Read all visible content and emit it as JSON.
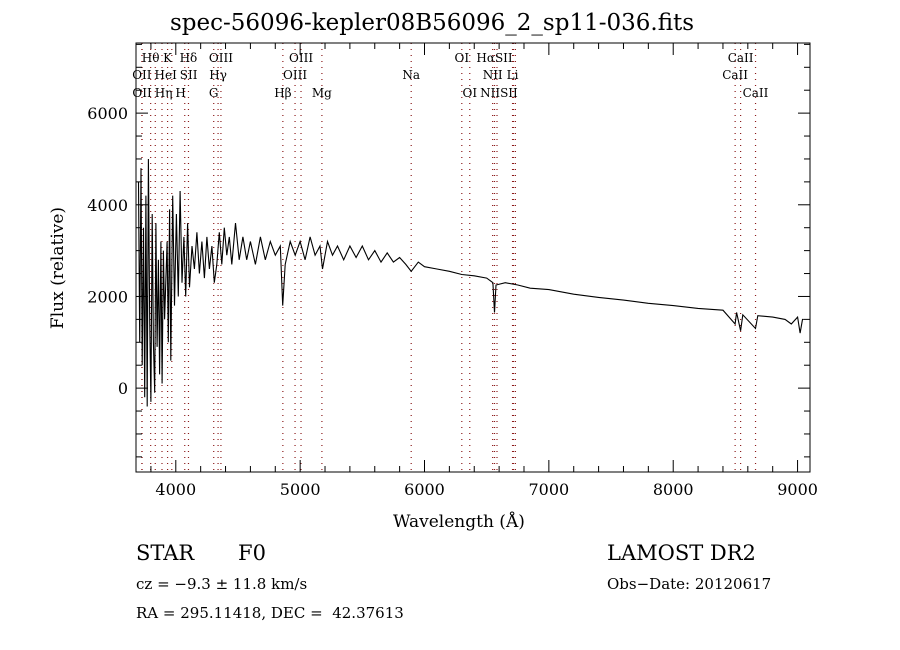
{
  "chart_data": {
    "type": "line",
    "title": "spec-56096-kepler08B56096_2_sp11-036.fits",
    "xlabel": "Wavelength (Å)",
    "ylabel": "Flux (relative)",
    "xlim": [
      3680,
      9100
    ],
    "ylim": [
      -1830,
      7530
    ],
    "xticks": [
      4000,
      5000,
      6000,
      7000,
      8000,
      9000
    ],
    "yticks": [
      0,
      2000,
      4000,
      6000
    ],
    "grid": false,
    "series": [
      {
        "name": "spectrum",
        "x": [
          3700,
          3710,
          3720,
          3730,
          3740,
          3750,
          3760,
          3770,
          3780,
          3790,
          3800,
          3810,
          3820,
          3830,
          3840,
          3850,
          3860,
          3870,
          3880,
          3890,
          3900,
          3910,
          3930,
          3940,
          3950,
          3960,
          3975,
          3990,
          4005,
          4020,
          4035,
          4050,
          4065,
          4080,
          4095,
          4110,
          4130,
          4150,
          4170,
          4190,
          4210,
          4230,
          4250,
          4270,
          4290,
          4310,
          4330,
          4350,
          4370,
          4390,
          4410,
          4430,
          4450,
          4480,
          4510,
          4540,
          4570,
          4600,
          4640,
          4680,
          4720,
          4760,
          4800,
          4840,
          4860,
          4880,
          4920,
          4960,
          5000,
          5040,
          5080,
          5120,
          5160,
          5180,
          5220,
          5260,
          5300,
          5350,
          5400,
          5450,
          5500,
          5550,
          5600,
          5650,
          5700,
          5750,
          5800,
          5850,
          5893,
          5950,
          6000,
          6100,
          6200,
          6300,
          6400,
          6500,
          6550,
          6563,
          6575,
          6650,
          6750,
          6850,
          7000,
          7200,
          7400,
          7600,
          7800,
          8000,
          8200,
          8400,
          8498,
          8510,
          8542,
          8560,
          8662,
          8680,
          8800,
          8900,
          8950,
          9000,
          9020,
          9040,
          9050
        ],
        "y": [
          4500,
          1000,
          4800,
          500,
          3500,
          -200,
          4200,
          -400,
          5000,
          1500,
          -300,
          3800,
          1000,
          -100,
          3600,
          900,
          2800,
          300,
          3200,
          100,
          3000,
          1500,
          3200,
          1000,
          3900,
          600,
          4200,
          1800,
          3800,
          2000,
          4300,
          2300,
          3300,
          2000,
          3600,
          2200,
          3100,
          2600,
          3400,
          2500,
          3200,
          2400,
          3300,
          2600,
          3100,
          2300,
          2700,
          3400,
          2700,
          3500,
          2900,
          3300,
          2700,
          3600,
          2800,
          3300,
          2800,
          3200,
          2700,
          3300,
          2800,
          3200,
          2900,
          3100,
          1800,
          2700,
          3200,
          2900,
          3200,
          2800,
          3300,
          2900,
          3100,
          2600,
          3200,
          2900,
          3100,
          2800,
          3100,
          2850,
          3100,
          2800,
          3000,
          2750,
          2950,
          2750,
          2850,
          2700,
          2550,
          2750,
          2650,
          2600,
          2550,
          2480,
          2450,
          2400,
          2300,
          1650,
          2250,
          2300,
          2250,
          2180,
          2150,
          2050,
          1980,
          1920,
          1850,
          1800,
          1740,
          1700,
          1400,
          1650,
          1250,
          1600,
          1300,
          1580,
          1550,
          1500,
          1400,
          1550,
          1200,
          1500,
          1500
        ]
      }
    ],
    "lines": [
      {
        "label": "Hθ",
        "wave": 3798,
        "row": 0
      },
      {
        "label": "K",
        "wave": 3934,
        "row": 0
      },
      {
        "label": "Hδ",
        "wave": 4102,
        "row": 0
      },
      {
        "label": "OIII",
        "wave": 4363,
        "row": 0
      },
      {
        "label": "OIII",
        "wave": 5007,
        "row": 0
      },
      {
        "label": "OI",
        "wave": 6300,
        "row": 0
      },
      {
        "label": "HαSII",
        "wave": 6563,
        "row": 0
      },
      {
        "label": "CaII",
        "wave": 8542,
        "row": 0
      },
      {
        "label": "OII",
        "wave": 3727,
        "row": 1
      },
      {
        "label": "HeI",
        "wave": 3889,
        "row": 1
      },
      {
        "label": "SII",
        "wave": 4072,
        "row": 1
      },
      {
        "label": "Hγ",
        "wave": 4340,
        "row": 1
      },
      {
        "label": "OIII",
        "wave": 4959,
        "row": 1
      },
      {
        "label": "Na",
        "wave": 5893,
        "row": 1
      },
      {
        "label": "NII",
        "wave": 6548,
        "row": 1
      },
      {
        "label": "Li",
        "wave": 6708,
        "row": 1
      },
      {
        "label": "CaII",
        "wave": 8498,
        "row": 1
      },
      {
        "label": "OII",
        "wave": 3729,
        "row": 2
      },
      {
        "label": "Hη",
        "wave": 3835,
        "row": 2
      },
      {
        "label": "H",
        "wave": 3968,
        "row": 2
      },
      {
        "label": "G",
        "wave": 4305,
        "row": 2
      },
      {
        "label": "Hβ",
        "wave": 4861,
        "row": 2
      },
      {
        "label": "Mg",
        "wave": 5175,
        "row": 2
      },
      {
        "label": "OI",
        "wave": 6364,
        "row": 2
      },
      {
        "label": "NIISII",
        "wave": 6583,
        "row": 2
      },
      {
        "label": "CaII",
        "wave": 8662,
        "row": 2
      }
    ],
    "extra_line_waves": [
      6716,
      6731
    ]
  },
  "info": {
    "class": "STAR",
    "subclass": "F0",
    "cz": "cz = −9.3 ± 11.8 km/s",
    "coords": "RA = 295.11418, DEC =  42.37613",
    "survey": "LAMOST DR2",
    "obs_date": "Obs−Date: 20120617"
  },
  "colors": {
    "line_marker": "#8b1a1a",
    "spectrum": "#000000"
  }
}
